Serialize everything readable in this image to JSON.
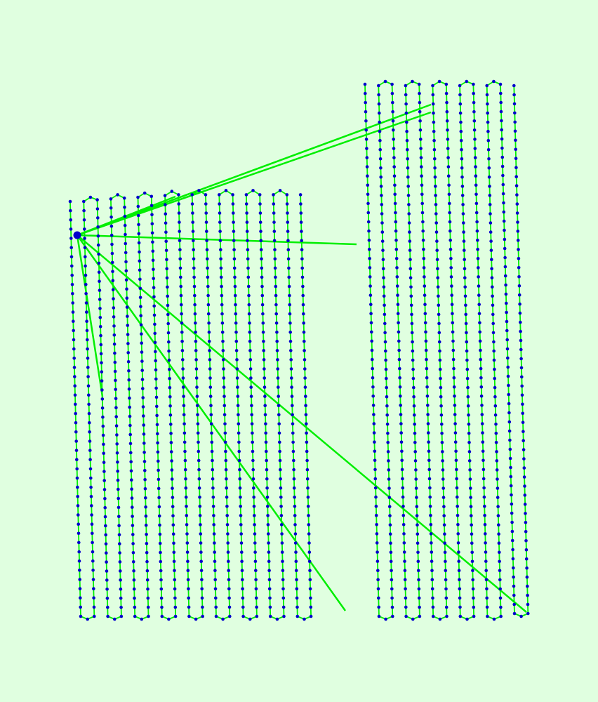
{
  "colors": {
    "background": "#e0ffe0",
    "path": "#00ee00",
    "waypoint": "#0000cc",
    "home": "#0000cc"
  },
  "home_marker": "home-waypoint",
  "flight_path": {
    "description_visible": false,
    "pattern": "lawnmower-survey",
    "legs": 34,
    "return_lines_to_home": 7
  }
}
